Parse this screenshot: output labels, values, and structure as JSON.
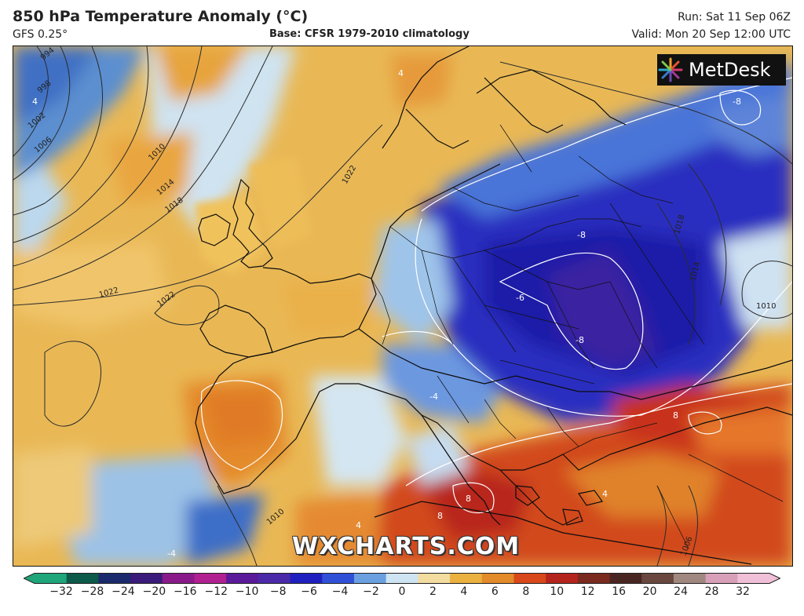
{
  "header": {
    "title": "850 hPa Temperature Anomaly (°C)",
    "model": "GFS 0.25°",
    "base": "Base: CFSR 1979-2010 climatology",
    "run": "Run: Sat 11 Sep 06Z",
    "valid": "Valid: Mon 20 Sep 12:00 UTC"
  },
  "logo": {
    "text": "MetDesk",
    "icon": "metdesk-starburst-icon"
  },
  "watermark": "WXCHARTS.COM",
  "map_labels": {
    "isobars": [
      "994",
      "998",
      "1002",
      "1006",
      "1010",
      "1014",
      "1018",
      "1022",
      "1022",
      "1022",
      "1018",
      "1014",
      "1010",
      "1010",
      "1006"
    ],
    "anomalies": [
      "4",
      "4",
      "-4",
      "-8",
      "-8",
      "-6",
      "-8",
      "8",
      "8",
      "8",
      "4",
      "4",
      "-4"
    ]
  },
  "colorbar": {
    "ticks": [
      "−32",
      "−28",
      "−24",
      "−20",
      "−16",
      "−12",
      "−10",
      "−8",
      "−6",
      "−4",
      "−2",
      "0",
      "2",
      "4",
      "6",
      "8",
      "10",
      "12",
      "16",
      "20",
      "24",
      "28",
      "32"
    ],
    "colors": [
      "#1fa57a",
      "#0b5a4a",
      "#1a2a6c",
      "#3a1a7a",
      "#8a1a8a",
      "#b02090",
      "#5a1a9a",
      "#4a2aa8",
      "#2020c0",
      "#3050d8",
      "#6aa0e0",
      "#cfe4f2",
      "#f2dca0",
      "#eab040",
      "#e38a2a",
      "#d8481a",
      "#b5241c",
      "#7a2a1e",
      "#4a2622",
      "#6a4840",
      "#a08880",
      "#d8a0b8",
      "#f0c0d8"
    ]
  }
}
